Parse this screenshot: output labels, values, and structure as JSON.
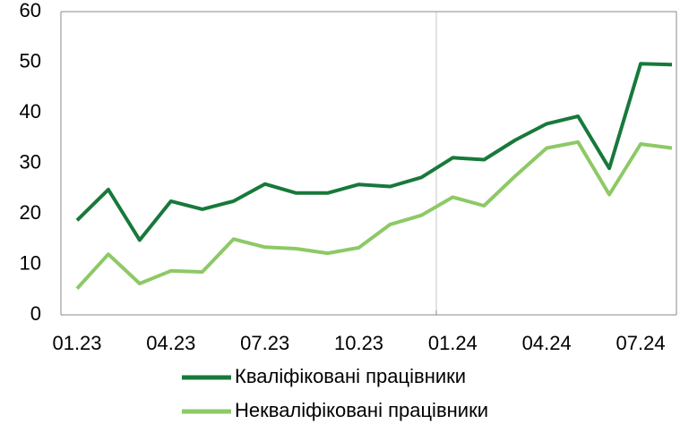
{
  "chart_data": {
    "type": "line",
    "categories": [
      "01.23",
      null,
      null,
      "04.23",
      null,
      null,
      "07.23",
      null,
      null,
      "10.23",
      null,
      null,
      "01.24",
      null,
      null,
      "04.24",
      null,
      null,
      "07.24",
      null
    ],
    "series": [
      {
        "name": "Кваліфіковані працівники",
        "color": "#17793b",
        "values": [
          18.7,
          24.8,
          14.8,
          22.5,
          20.9,
          22.5,
          25.9,
          24.1,
          24.1,
          25.8,
          25.4,
          27.2,
          31.1,
          30.7,
          34.6,
          37.8,
          39.3,
          29.0,
          49.7,
          49.5
        ]
      },
      {
        "name": "Некваліфіковані працівники",
        "color": "#8dc966",
        "values": [
          5.2,
          12.0,
          6.2,
          8.7,
          8.5,
          15.0,
          13.4,
          13.1,
          12.2,
          13.3,
          17.9,
          19.7,
          23.3,
          21.6,
          27.5,
          33.0,
          34.2,
          23.8,
          33.8,
          33.0
        ]
      }
    ],
    "ylim": [
      0,
      60
    ],
    "yticks": [
      0,
      10,
      20,
      30,
      40,
      50,
      60
    ],
    "grid": true
  }
}
